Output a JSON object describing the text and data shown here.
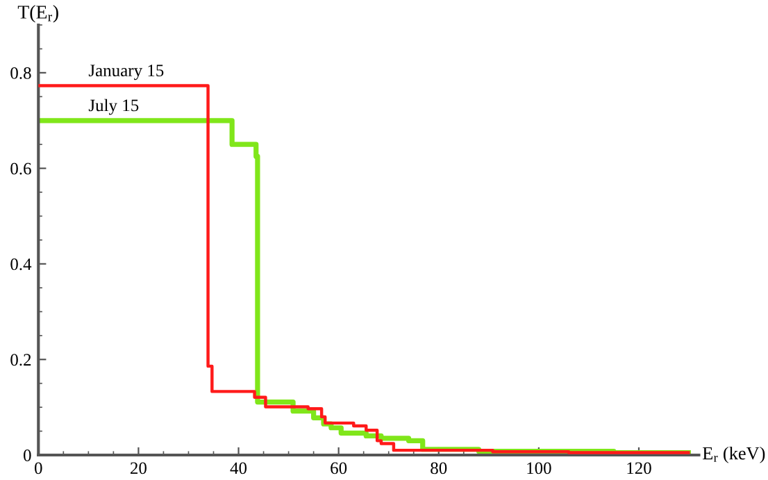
{
  "chart_data": {
    "type": "step",
    "xlabel": "E$_{r}$ (keV)",
    "ylabel": "T(E$_{r}$)",
    "xlim": [
      0,
      132
    ],
    "ylim": [
      0,
      0.9
    ],
    "xticks": [
      0,
      20,
      40,
      60,
      80,
      100,
      120
    ],
    "yticks": [
      0,
      0.2,
      0.4,
      0.6,
      0.8
    ],
    "grid": false,
    "legend": false,
    "marker": "none",
    "line_style": "solid",
    "series": [
      {
        "name": "January 15",
        "color": "#ff1a1a",
        "x": [
          0,
          33.9,
          34.7,
          43.2,
          45.4,
          53.9,
          56.6,
          57.3,
          63,
          65.5,
          67.7,
          68.5,
          71,
          90.8,
          106,
          129.9
        ],
        "values": [
          0.773,
          0.186,
          0.133,
          0.121,
          0.101,
          0.097,
          0.08,
          0.067,
          0.061,
          0.052,
          0.03,
          0.024,
          0.01,
          0.007,
          0.005,
          0.005
        ]
      },
      {
        "name": "July 15",
        "color": "#80e61a",
        "x": [
          0,
          38.7,
          43.5,
          43.8,
          50.9,
          55,
          57,
          58.5,
          60.5,
          65.5,
          68.5,
          74,
          76.8,
          88,
          115,
          129.9
        ],
        "values": [
          0.7,
          0.65,
          0.625,
          0.111,
          0.092,
          0.078,
          0.065,
          0.057,
          0.046,
          0.04,
          0.035,
          0.03,
          0.012,
          0.008,
          0.005,
          0.005
        ]
      }
    ]
  }
}
